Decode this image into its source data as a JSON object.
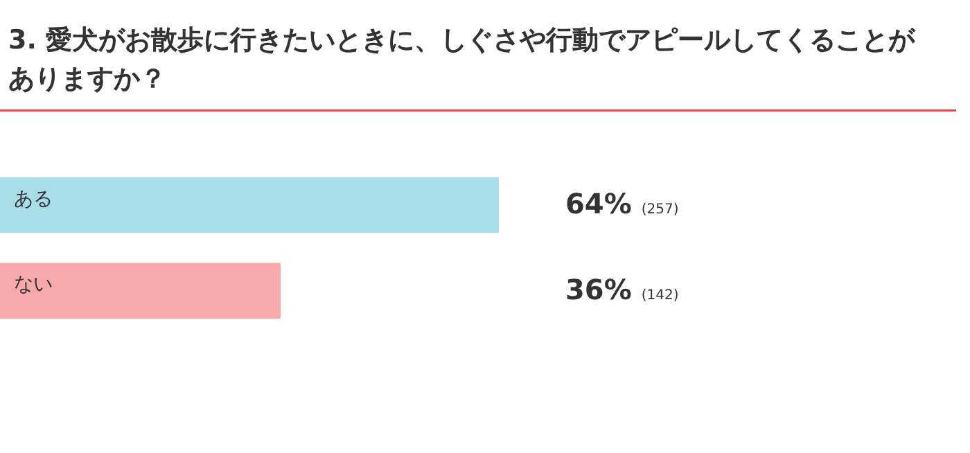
{
  "chart_data": {
    "type": "bar",
    "orientation": "horizontal",
    "title": "3. 愛犬がお散歩に行きたいときに、しぐさや行動でアピールしてくることがありますか？",
    "categories": [
      "ある",
      "ない"
    ],
    "values": [
      64,
      36
    ],
    "colors": [
      "#a9dde8",
      "#f7a9ab"
    ],
    "value_labels": [
      "64% (257)",
      "36% (142)"
    ]
  }
}
